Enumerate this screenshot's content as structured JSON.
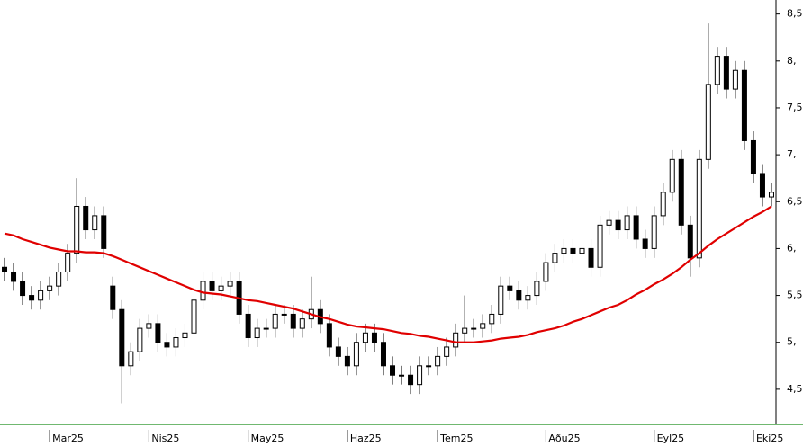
{
  "chart_data": {
    "type": "candlestick",
    "categories": [
      null,
      null,
      null,
      null,
      null,
      "Mar25",
      null,
      null,
      null,
      null,
      null,
      null,
      null,
      null,
      null,
      null,
      "Nis25",
      null,
      null,
      null,
      null,
      null,
      null,
      null,
      null,
      null,
      null,
      "May25",
      null,
      null,
      null,
      null,
      null,
      null,
      null,
      null,
      null,
      null,
      "Haz25",
      null,
      null,
      null,
      null,
      null,
      null,
      null,
      null,
      null,
      "Tem25",
      null,
      null,
      null,
      null,
      null,
      null,
      null,
      null,
      null,
      null,
      null,
      "Aðu25",
      null,
      null,
      null,
      null,
      null,
      null,
      null,
      null,
      null,
      null,
      null,
      "Eyl25",
      null,
      null,
      null,
      null,
      null,
      null,
      null,
      null,
      null,
      null,
      "Eki25",
      null,
      null
    ],
    "open": [
      5.8,
      5.75,
      5.65,
      5.5,
      5.45,
      5.55,
      5.6,
      5.75,
      5.95,
      6.45,
      6.2,
      6.35,
      5.6,
      5.35,
      4.75,
      4.9,
      5.15,
      5.2,
      5.0,
      4.95,
      5.05,
      5.1,
      5.45,
      5.65,
      5.55,
      5.6,
      5.65,
      5.3,
      5.05,
      5.15,
      5.15,
      5.3,
      5.3,
      5.15,
      5.25,
      5.35,
      5.2,
      4.95,
      4.85,
      4.75,
      5.0,
      5.1,
      5.0,
      4.75,
      4.65,
      4.65,
      4.55,
      4.75,
      4.75,
      4.85,
      4.95,
      5.1,
      5.15,
      5.15,
      5.2,
      5.3,
      5.6,
      5.55,
      5.45,
      5.5,
      5.65,
      5.85,
      5.95,
      6.0,
      5.95,
      6.0,
      5.8,
      6.25,
      6.3,
      6.2,
      6.35,
      6.1,
      6.0,
      6.35,
      6.6,
      6.95,
      6.25,
      5.9,
      6.95,
      7.75,
      8.05,
      7.7,
      7.9,
      7.15,
      6.8,
      6.55
    ],
    "high": [
      5.9,
      5.85,
      5.75,
      5.6,
      5.65,
      5.7,
      5.85,
      6.05,
      6.75,
      6.55,
      6.45,
      6.45,
      5.7,
      5.45,
      5.0,
      5.25,
      5.3,
      5.3,
      5.1,
      5.15,
      5.2,
      5.55,
      5.75,
      5.75,
      5.7,
      5.75,
      5.75,
      5.4,
      5.25,
      5.25,
      5.4,
      5.4,
      5.4,
      5.35,
      5.7,
      5.45,
      5.3,
      5.05,
      4.95,
      5.1,
      5.2,
      5.2,
      5.1,
      4.85,
      4.75,
      4.75,
      4.85,
      4.85,
      4.95,
      5.05,
      5.2,
      5.5,
      5.25,
      5.3,
      5.4,
      5.7,
      5.7,
      5.65,
      5.6,
      5.75,
      5.95,
      6.05,
      6.1,
      6.1,
      6.1,
      6.1,
      6.35,
      6.4,
      6.4,
      6.45,
      6.45,
      6.2,
      6.45,
      6.7,
      7.05,
      7.05,
      6.35,
      7.05,
      8.4,
      8.15,
      8.15,
      8.0,
      8.0,
      7.25,
      6.9,
      6.7
    ],
    "low": [
      5.65,
      5.55,
      5.4,
      5.35,
      5.35,
      5.45,
      5.5,
      5.65,
      5.85,
      6.1,
      6.1,
      5.9,
      5.25,
      4.35,
      4.65,
      4.8,
      5.05,
      4.9,
      4.85,
      4.85,
      4.95,
      5.0,
      5.35,
      5.45,
      5.45,
      5.5,
      5.2,
      4.95,
      4.95,
      5.05,
      5.05,
      5.2,
      5.05,
      5.05,
      5.15,
      5.1,
      4.85,
      4.75,
      4.65,
      4.65,
      4.9,
      4.9,
      4.65,
      4.55,
      4.55,
      4.45,
      4.45,
      4.65,
      4.65,
      4.75,
      4.85,
      5.0,
      5.05,
      5.05,
      5.1,
      5.2,
      5.45,
      5.35,
      5.35,
      5.4,
      5.55,
      5.75,
      5.85,
      5.85,
      5.85,
      5.7,
      5.7,
      6.15,
      6.1,
      6.1,
      6.0,
      5.9,
      5.9,
      6.25,
      6.5,
      6.15,
      5.7,
      5.8,
      6.85,
      7.65,
      7.6,
      7.6,
      7.05,
      6.7,
      6.45,
      6.45
    ],
    "close": [
      5.75,
      5.65,
      5.5,
      5.45,
      5.55,
      5.6,
      5.75,
      5.95,
      6.45,
      6.2,
      6.35,
      6.0,
      5.35,
      4.75,
      4.9,
      5.15,
      5.2,
      5.0,
      4.95,
      5.05,
      5.1,
      5.45,
      5.65,
      5.55,
      5.6,
      5.65,
      5.3,
      5.05,
      5.15,
      5.15,
      5.3,
      5.3,
      5.15,
      5.25,
      5.35,
      5.2,
      4.95,
      4.85,
      4.75,
      5.0,
      5.1,
      5.0,
      4.75,
      4.65,
      4.65,
      4.55,
      4.75,
      4.75,
      4.85,
      4.95,
      5.1,
      5.15,
      5.15,
      5.2,
      5.3,
      5.6,
      5.55,
      5.45,
      5.5,
      5.65,
      5.85,
      5.95,
      6.0,
      5.95,
      6.0,
      5.8,
      6.25,
      6.3,
      6.2,
      6.35,
      6.1,
      6.0,
      6.35,
      6.6,
      6.95,
      6.25,
      5.9,
      6.95,
      7.75,
      8.05,
      7.7,
      7.9,
      7.15,
      6.8,
      6.55,
      6.6
    ],
    "ma": {
      "color": "#e00000",
      "values": [
        6.16,
        6.14,
        6.1,
        6.07,
        6.04,
        6.01,
        5.99,
        5.97,
        5.97,
        5.96,
        5.96,
        5.95,
        5.92,
        5.88,
        5.84,
        5.8,
        5.76,
        5.72,
        5.68,
        5.64,
        5.6,
        5.56,
        5.53,
        5.52,
        5.51,
        5.49,
        5.47,
        5.45,
        5.44,
        5.42,
        5.4,
        5.38,
        5.36,
        5.33,
        5.3,
        5.27,
        5.25,
        5.22,
        5.19,
        5.17,
        5.16,
        5.15,
        5.14,
        5.12,
        5.1,
        5.09,
        5.07,
        5.06,
        5.04,
        5.02,
        5.0,
        5.0,
        5.0,
        5.01,
        5.02,
        5.04,
        5.05,
        5.06,
        5.08,
        5.11,
        5.13,
        5.15,
        5.18,
        5.22,
        5.25,
        5.29,
        5.33,
        5.37,
        5.4,
        5.45,
        5.51,
        5.56,
        5.62,
        5.67,
        5.73,
        5.8,
        5.88,
        5.95,
        6.03,
        6.1,
        6.16,
        6.22,
        6.28,
        6.34,
        6.39,
        6.45
      ]
    },
    "up_color": "#ffffff",
    "down_color": "#000000",
    "axis_color": "#70b870",
    "ylim": [
      4.125,
      8.65
    ],
    "yticks": [
      {
        "value": 4.5,
        "label": "4,5"
      },
      {
        "value": 5,
        "label": "5,"
      },
      {
        "value": 5.5,
        "label": "5,5"
      },
      {
        "value": 6,
        "label": "6,"
      },
      {
        "value": 6.5,
        "label": "6,5"
      },
      {
        "value": 7,
        "label": "7,"
      },
      {
        "value": 7.5,
        "label": "7,5"
      },
      {
        "value": 8,
        "label": "8,"
      },
      {
        "value": 8.5,
        "label": "8,5"
      }
    ]
  }
}
